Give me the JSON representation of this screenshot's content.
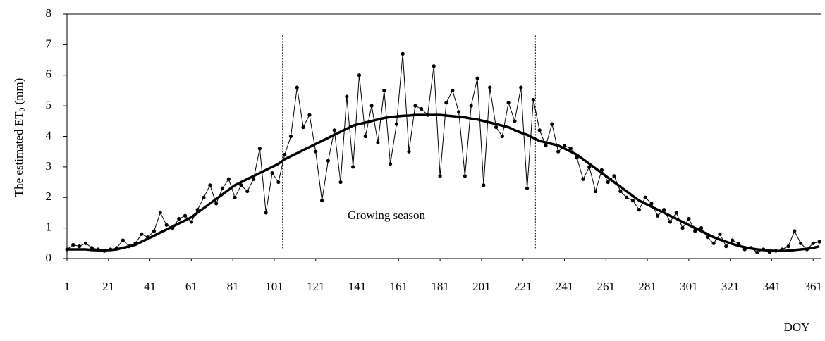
{
  "chart_data": {
    "type": "line",
    "y_label": [
      "The estimated ET",
      "0",
      "(mm)"
    ],
    "x_label": "DOY",
    "annotation": "Growing season",
    "season_bounds": [
      105,
      227
    ],
    "xlim": [
      1,
      365
    ],
    "xticks": [
      1,
      21,
      41,
      61,
      81,
      101,
      121,
      141,
      161,
      181,
      201,
      221,
      241,
      261,
      281,
      301,
      321,
      341,
      361
    ],
    "ylim": [
      0,
      8
    ],
    "yticks": [
      0,
      1,
      2,
      3,
      4,
      5,
      6,
      7,
      8
    ],
    "x": [
      1,
      4,
      7,
      10,
      13,
      16,
      19,
      22,
      25,
      28,
      31,
      34,
      37,
      40,
      43,
      46,
      49,
      52,
      55,
      58,
      61,
      64,
      67,
      70,
      73,
      76,
      79,
      82,
      85,
      88,
      91,
      94,
      97,
      100,
      103,
      106,
      109,
      112,
      115,
      118,
      121,
      124,
      127,
      130,
      133,
      136,
      139,
      142,
      145,
      148,
      151,
      154,
      157,
      160,
      163,
      166,
      169,
      172,
      175,
      178,
      181,
      184,
      187,
      190,
      193,
      196,
      199,
      202,
      205,
      208,
      211,
      214,
      217,
      220,
      223,
      226,
      229,
      232,
      235,
      238,
      241,
      244,
      247,
      250,
      253,
      256,
      259,
      262,
      265,
      268,
      271,
      274,
      277,
      280,
      283,
      286,
      289,
      292,
      295,
      298,
      301,
      304,
      307,
      310,
      313,
      316,
      319,
      322,
      325,
      328,
      331,
      334,
      337,
      340,
      343,
      346,
      349,
      352,
      355,
      358,
      361,
      364
    ],
    "series": [
      {
        "color": "#000000",
        "style": "markers",
        "values": [
          0.3,
          0.45,
          0.4,
          0.5,
          0.35,
          0.3,
          0.25,
          0.3,
          0.35,
          0.6,
          0.4,
          0.5,
          0.8,
          0.7,
          0.9,
          1.5,
          1.1,
          1.0,
          1.3,
          1.4,
          1.2,
          1.6,
          2.0,
          2.4,
          1.8,
          2.3,
          2.6,
          2.0,
          2.4,
          2.2,
          2.6,
          3.6,
          1.5,
          2.8,
          2.5,
          3.4,
          4.0,
          5.6,
          4.3,
          4.7,
          3.5,
          1.9,
          3.2,
          4.2,
          2.5,
          5.3,
          3.0,
          6.0,
          4.0,
          5.0,
          3.8,
          5.5,
          3.1,
          4.4,
          6.7,
          3.5,
          5.0,
          4.9,
          4.7,
          6.3,
          2.7,
          5.1,
          5.5,
          4.8,
          2.7,
          5.0,
          5.9,
          2.4,
          5.6,
          4.3,
          4.0,
          5.1,
          4.5,
          5.6,
          2.3,
          5.2,
          4.2,
          3.7,
          4.4,
          3.5,
          3.7,
          3.6,
          3.3,
          2.6,
          3.0,
          2.2,
          2.9,
          2.5,
          2.7,
          2.2,
          2.0,
          1.9,
          1.6,
          2.0,
          1.8,
          1.4,
          1.6,
          1.2,
          1.5,
          1.0,
          1.3,
          0.9,
          1.0,
          0.7,
          0.5,
          0.8,
          0.4,
          0.6,
          0.5,
          0.3,
          0.35,
          0.2,
          0.3,
          0.2,
          0.25,
          0.3,
          0.4,
          0.9,
          0.5,
          0.3,
          0.5,
          0.55
        ]
      },
      {
        "color": "#000000",
        "style": "smooth",
        "values": [
          0.3,
          0.3,
          0.3,
          0.3,
          0.28,
          0.27,
          0.27,
          0.28,
          0.3,
          0.35,
          0.4,
          0.45,
          0.55,
          0.65,
          0.75,
          0.85,
          0.95,
          1.05,
          1.15,
          1.25,
          1.35,
          1.5,
          1.65,
          1.8,
          1.95,
          2.1,
          2.25,
          2.4,
          2.5,
          2.6,
          2.7,
          2.8,
          2.9,
          3.0,
          3.1,
          3.25,
          3.35,
          3.45,
          3.55,
          3.65,
          3.75,
          3.85,
          3.95,
          4.05,
          4.15,
          4.25,
          4.35,
          4.4,
          4.45,
          4.5,
          4.55,
          4.6,
          4.63,
          4.65,
          4.67,
          4.68,
          4.7,
          4.7,
          4.7,
          4.7,
          4.7,
          4.68,
          4.66,
          4.64,
          4.62,
          4.58,
          4.55,
          4.5,
          4.45,
          4.4,
          4.35,
          4.3,
          4.2,
          4.12,
          4.05,
          3.95,
          3.85,
          3.8,
          3.75,
          3.7,
          3.6,
          3.5,
          3.4,
          3.25,
          3.1,
          2.95,
          2.8,
          2.65,
          2.5,
          2.35,
          2.2,
          2.05,
          1.9,
          1.8,
          1.7,
          1.6,
          1.5,
          1.4,
          1.3,
          1.2,
          1.1,
          1.0,
          0.9,
          0.8,
          0.7,
          0.62,
          0.55,
          0.48,
          0.42,
          0.37,
          0.33,
          0.3,
          0.28,
          0.26,
          0.25,
          0.25,
          0.26,
          0.28,
          0.3,
          0.32,
          0.35,
          0.4
        ]
      }
    ]
  }
}
